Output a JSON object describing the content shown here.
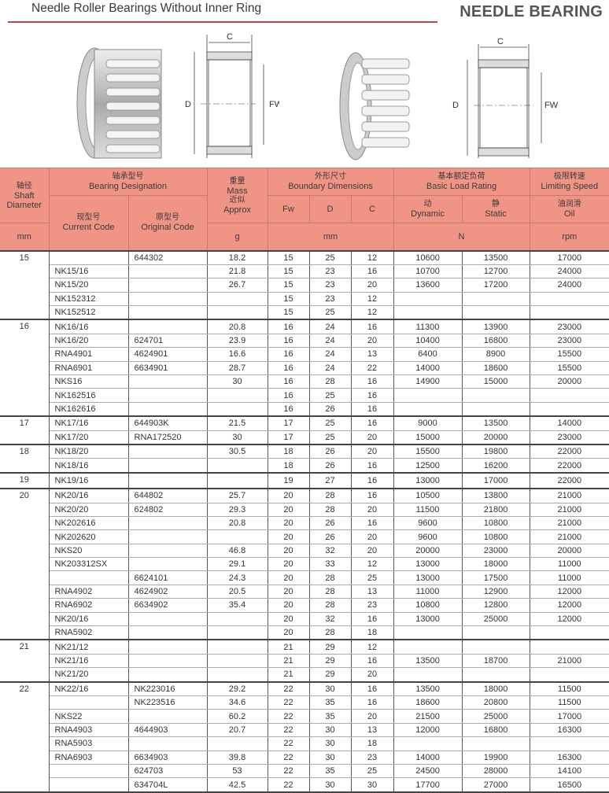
{
  "header": {
    "title": "Needle Roller Bearings Without Inner Ring",
    "brand": "NEEDLE BEARING"
  },
  "figures": {
    "label_c": "C",
    "label_d": "D",
    "label_fw": "FW"
  },
  "colors": {
    "header_bg": "#f09585",
    "title_rule": "#c0404e"
  },
  "columns": {
    "shaft_zh": "轴径",
    "shaft_en": "Shaft Diameter",
    "shaft_unit": "mm",
    "designation_zh": "轴承型号",
    "designation_en": "Bearing Designation",
    "current_zh": "现型号",
    "current_en": "Current Code",
    "original_zh": "原型号",
    "original_en": "Original Code",
    "mass_zh": "重量",
    "mass_en": "Mass",
    "mass_zh2": "近似",
    "mass_en2": "Approx",
    "mass_unit": "g",
    "boundary_zh": "外形尺寸",
    "boundary_en": "Boundary Dimensions",
    "fw": "Fw",
    "d": "D",
    "c": "C",
    "boundary_unit": "mm",
    "load_zh": "基本额定负荷",
    "load_en": "Basic Load Rating",
    "dynamic_zh": "动",
    "dynamic_en": "Dynamic",
    "static_zh": "静",
    "static_en": "Static",
    "load_unit": "N",
    "speed_zh": "极限转速",
    "speed_en": "Limiting Speed",
    "oil_zh": "油润滑",
    "oil_en": "Oil",
    "speed_unit": "rpm"
  },
  "groups": [
    {
      "shaft": "15",
      "rows": [
        [
          "",
          "644302",
          "18.2",
          "15",
          "25",
          "12",
          "10600",
          "13500",
          "17000"
        ],
        [
          "NK15/16",
          "",
          "21.8",
          "15",
          "23",
          "16",
          "10700",
          "12700",
          "24000"
        ],
        [
          "NK15/20",
          "",
          "26.7",
          "15",
          "23",
          "20",
          "13600",
          "17200",
          "24000"
        ],
        [
          "NK152312",
          "",
          "",
          "15",
          "23",
          "12",
          "",
          "",
          ""
        ],
        [
          "NK152512",
          "",
          "",
          "15",
          "25",
          "12",
          "",
          "",
          ""
        ]
      ]
    },
    {
      "shaft": "16",
      "rows": [
        [
          "NK16/16",
          "",
          "20.8",
          "16",
          "24",
          "16",
          "11300",
          "13900",
          "23000"
        ],
        [
          "NK16/20",
          "624701",
          "23.9",
          "16",
          "24",
          "20",
          "10400",
          "16800",
          "23000"
        ],
        [
          "RNA4901",
          "4624901",
          "16.6",
          "16",
          "24",
          "13",
          "6400",
          "8900",
          "15500"
        ],
        [
          "RNA6901",
          "6634901",
          "28.7",
          "16",
          "24",
          "22",
          "14000",
          "18600",
          "15500"
        ],
        [
          "NKS16",
          "",
          "30",
          "16",
          "28",
          "16",
          "14900",
          "15000",
          "20000"
        ],
        [
          "NK162516",
          "",
          "",
          "16",
          "25",
          "16",
          "",
          "",
          ""
        ],
        [
          "NK162616",
          "",
          "",
          "16",
          "26",
          "16",
          "",
          "",
          ""
        ]
      ]
    },
    {
      "shaft": "17",
      "rows": [
        [
          "NK17/16",
          "644903K",
          "21.5",
          "17",
          "25",
          "16",
          "9000",
          "13500",
          "14000"
        ],
        [
          "NK17/20",
          "RNA172520",
          "30",
          "17",
          "25",
          "20",
          "15000",
          "20000",
          "23000"
        ]
      ]
    },
    {
      "shaft": "18",
      "rows": [
        [
          "NK18/20",
          "",
          "30.5",
          "18",
          "26",
          "20",
          "15500",
          "19800",
          "22000"
        ],
        [
          "NK18/16",
          "",
          "",
          "18",
          "26",
          "16",
          "12500",
          "16200",
          "22000"
        ]
      ]
    },
    {
      "shaft": "19",
      "rows": [
        [
          "NK19/16",
          "",
          "",
          "19",
          "27",
          "16",
          "13000",
          "17000",
          "22000"
        ]
      ]
    },
    {
      "shaft": "20",
      "rows": [
        [
          "NK20/16",
          "644802",
          "25.7",
          "20",
          "28",
          "16",
          "10500",
          "13800",
          "21000"
        ],
        [
          "NK20/20",
          "624802",
          "29.3",
          "20",
          "28",
          "20",
          "11500",
          "21800",
          "21000"
        ],
        [
          "NK202616",
          "",
          "20.8",
          "20",
          "26",
          "16",
          "9600",
          "10800",
          "21000"
        ],
        [
          "NK202620",
          "",
          "",
          "20",
          "26",
          "20",
          "9600",
          "10800",
          "21000"
        ],
        [
          "NKS20",
          "",
          "46.8",
          "20",
          "32",
          "20",
          "20000",
          "23000",
          "20000"
        ],
        [
          "NK203312SX",
          "",
          "29.1",
          "20",
          "33",
          "12",
          "13000",
          "18000",
          "11000"
        ],
        [
          "",
          "6624101",
          "24.3",
          "20",
          "28",
          "25",
          "13000",
          "17500",
          "11000"
        ],
        [
          "RNA4902",
          "4624902",
          "20.5",
          "20",
          "28",
          "13",
          "11000",
          "12900",
          "12000"
        ],
        [
          "RNA6902",
          "6634902",
          "35.4",
          "20",
          "28",
          "23",
          "10800",
          "12800",
          "12000"
        ],
        [
          "NK20/16",
          "",
          "",
          "20",
          "32",
          "16",
          "13000",
          "25000",
          "12000"
        ],
        [
          "RNA5902",
          "",
          "",
          "20",
          "28",
          "18",
          "",
          "",
          ""
        ]
      ]
    },
    {
      "shaft": "21",
      "rows": [
        [
          "NK21/12",
          "",
          "",
          "21",
          "29",
          "12",
          "",
          "",
          ""
        ],
        [
          "NK21/16",
          "",
          "",
          "21",
          "29",
          "16",
          "13500",
          "18700",
          "21000"
        ],
        [
          "NK21/20",
          "",
          "",
          "21",
          "29",
          "20",
          "",
          "",
          ""
        ]
      ]
    },
    {
      "shaft": "22",
      "rows": [
        [
          "NK22/16",
          "NK223016",
          "29.2",
          "22",
          "30",
          "16",
          "13500",
          "18000",
          "11500"
        ],
        [
          "",
          "NK223516",
          "34.6",
          "22",
          "35",
          "16",
          "18600",
          "20800",
          "11500"
        ],
        [
          "NKS22",
          "",
          "60.2",
          "22",
          "35",
          "20",
          "21500",
          "25000",
          "17000"
        ],
        [
          "RNA4903",
          "4644903",
          "20.7",
          "22",
          "30",
          "13",
          "12000",
          "16800",
          "16300"
        ],
        [
          "RNA5903",
          "",
          "",
          "22",
          "30",
          "18",
          "",
          "",
          ""
        ],
        [
          "RNA6903",
          "6634903",
          "39.8",
          "22",
          "30",
          "23",
          "14000",
          "19900",
          "16300"
        ],
        [
          "",
          "624703",
          "53",
          "22",
          "35",
          "25",
          "24500",
          "28000",
          "14100"
        ],
        [
          "",
          "634704L",
          "42.5",
          "22",
          "30",
          "30",
          "17700",
          "27000",
          "16500"
        ]
      ]
    }
  ]
}
